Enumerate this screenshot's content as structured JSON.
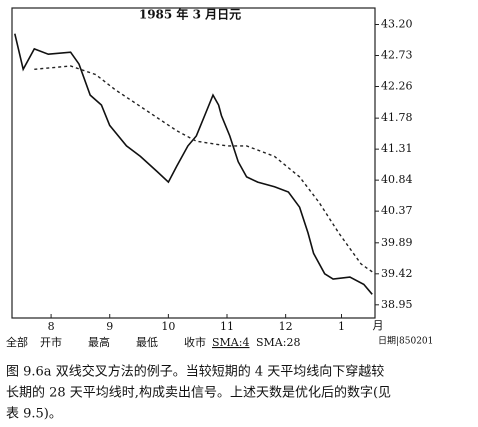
{
  "chart_data": {
    "type": "line",
    "title": "1985 年 3 月日元",
    "x_unit": "月",
    "xlim": [
      0,
      130
    ],
    "xticks": [
      {
        "value": 14,
        "label": "8"
      },
      {
        "value": 35,
        "label": "9"
      },
      {
        "value": 56,
        "label": "10"
      },
      {
        "value": 77,
        "label": "11"
      },
      {
        "value": 98,
        "label": "12"
      },
      {
        "value": 118,
        "label": "1"
      }
    ],
    "ylim": [
      38.75,
      43.45
    ],
    "yticks": [
      {
        "value": 43.2,
        "label": "43.20"
      },
      42.73,
      42.26,
      41.78,
      41.31,
      40.84,
      40.37,
      39.89,
      39.42,
      38.95
    ],
    "grid": false,
    "series": [
      {
        "name": "SMA:4",
        "color": "#111111",
        "dashed": false,
        "x": [
          1,
          4,
          8,
          13,
          21,
          24,
          28,
          32,
          35,
          41,
          46,
          52,
          56,
          59,
          63,
          66,
          69,
          72,
          74,
          75,
          78,
          81,
          84,
          88,
          94,
          99,
          103,
          106,
          108,
          112,
          115,
          121,
          126,
          129
        ],
        "values": [
          43.06,
          42.52,
          42.83,
          42.75,
          42.78,
          42.6,
          42.13,
          41.98,
          41.67,
          41.36,
          41.2,
          40.97,
          40.81,
          41.05,
          41.36,
          41.51,
          41.82,
          42.13,
          41.98,
          41.82,
          41.51,
          41.12,
          40.89,
          40.81,
          40.74,
          40.66,
          40.43,
          40.04,
          39.73,
          39.42,
          39.34,
          39.37,
          39.26,
          39.11
        ]
      },
      {
        "name": "SMA:28",
        "color": "#222222",
        "dashed": true,
        "x": [
          8,
          21,
          30,
          37,
          48,
          59,
          66,
          77,
          84,
          94,
          103,
          110,
          117,
          125,
          130
        ],
        "values": [
          42.52,
          42.57,
          42.44,
          42.21,
          41.9,
          41.59,
          41.43,
          41.36,
          41.36,
          41.2,
          40.89,
          40.5,
          40.04,
          39.57,
          39.42
        ]
      }
    ],
    "toolbar": [
      "全部",
      "开市",
      "最高",
      "最低",
      "收市"
    ],
    "date_label": "日期|850201",
    "caption": [
      "图 9.6a   双线交叉方法的例子。当较短期的 4 天平均线向下穿越较",
      "长期的 28 天平均线时,构成卖出信号。上述天数是优化后的数字(见",
      "表 9.5)。"
    ]
  }
}
